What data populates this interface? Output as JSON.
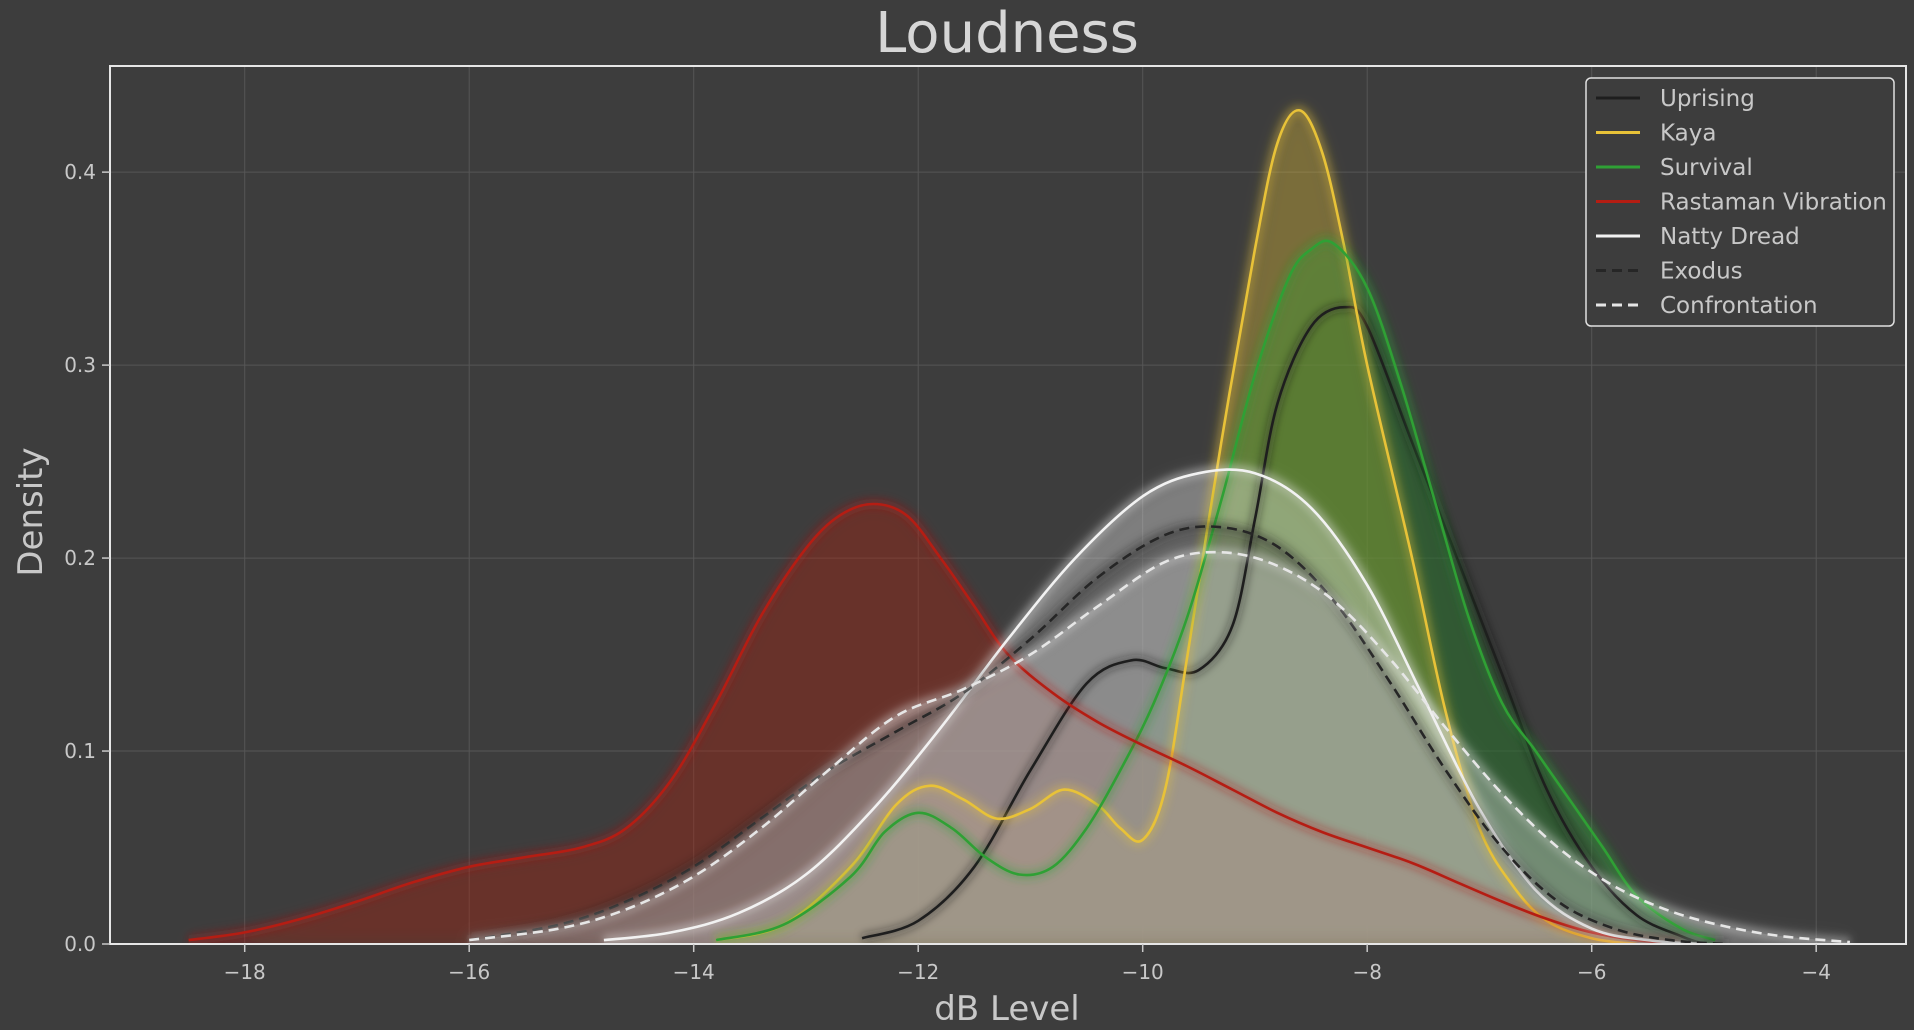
{
  "chart_data": {
    "type": "area",
    "title": "Loudness",
    "xlabel": "dB Level",
    "ylabel": "Density",
    "xlim": [
      -19.2,
      -3.2
    ],
    "ylim": [
      0,
      0.455
    ],
    "xticks": [
      -18,
      -16,
      -14,
      -12,
      -10,
      -8,
      -6,
      -4
    ],
    "xtick_labels": [
      "−18",
      "−16",
      "−14",
      "−12",
      "−10",
      "−8",
      "−6",
      "−4"
    ],
    "yticks": [
      0.0,
      0.1,
      0.2,
      0.3,
      0.4
    ],
    "ytick_labels": [
      "0.0",
      "0.1",
      "0.2",
      "0.3",
      "0.4"
    ],
    "grid": true,
    "legend_position": "top-right",
    "background": "#3d3d3d",
    "series": [
      {
        "name": "Uprising",
        "color": "#1e1e1e",
        "dash": "solid",
        "fill": true,
        "x": [
          -12.5,
          -12,
          -11.5,
          -11,
          -10.5,
          -10.1,
          -9.8,
          -9.5,
          -9.2,
          -9.0,
          -8.8,
          -8.5,
          -8.2,
          -8.0,
          -7.6,
          -7.2,
          -6.8,
          -6.4,
          -6.0,
          -5.6,
          -5.2,
          -5.0
        ],
        "y": [
          0.003,
          0.012,
          0.04,
          0.09,
          0.135,
          0.147,
          0.143,
          0.142,
          0.165,
          0.22,
          0.28,
          0.32,
          0.33,
          0.32,
          0.26,
          0.2,
          0.14,
          0.08,
          0.04,
          0.015,
          0.004,
          0.0
        ]
      },
      {
        "name": "Kaya",
        "color": "#e8c238",
        "dash": "solid",
        "fill": true,
        "x": [
          -13.8,
          -13.2,
          -12.6,
          -12.2,
          -11.9,
          -11.6,
          -11.3,
          -11.0,
          -10.7,
          -10.4,
          -10.2,
          -10.0,
          -9.8,
          -9.6,
          -9.3,
          -9.0,
          -8.8,
          -8.6,
          -8.4,
          -8.2,
          -8.0,
          -7.6,
          -7.3,
          -7.0,
          -6.7,
          -6.4,
          -6.0,
          -5.6
        ],
        "y": [
          0.002,
          0.01,
          0.04,
          0.072,
          0.082,
          0.075,
          0.065,
          0.07,
          0.08,
          0.072,
          0.06,
          0.054,
          0.08,
          0.15,
          0.26,
          0.36,
          0.415,
          0.432,
          0.41,
          0.36,
          0.3,
          0.2,
          0.12,
          0.06,
          0.03,
          0.012,
          0.003,
          0.0
        ]
      },
      {
        "name": "Survival",
        "color": "#2fa035",
        "dash": "solid",
        "fill": true,
        "x": [
          -13.8,
          -13.2,
          -12.6,
          -12.3,
          -12.0,
          -11.7,
          -11.4,
          -11.1,
          -10.8,
          -10.5,
          -10.2,
          -9.9,
          -9.6,
          -9.3,
          -9.0,
          -8.7,
          -8.5,
          -8.3,
          -8.0,
          -7.7,
          -7.4,
          -7.1,
          -6.8,
          -6.5,
          -6.2,
          -5.9,
          -5.6,
          -5.2,
          -4.9
        ],
        "y": [
          0.002,
          0.01,
          0.035,
          0.058,
          0.068,
          0.06,
          0.045,
          0.036,
          0.04,
          0.06,
          0.09,
          0.125,
          0.17,
          0.23,
          0.295,
          0.345,
          0.36,
          0.363,
          0.34,
          0.29,
          0.23,
          0.17,
          0.125,
          0.1,
          0.075,
          0.05,
          0.025,
          0.008,
          0.002
        ]
      },
      {
        "name": "Rastaman Vibration",
        "color": "#b51d13",
        "dash": "solid",
        "fill": true,
        "x": [
          -18.5,
          -18.0,
          -17.5,
          -17.0,
          -16.5,
          -16.0,
          -15.5,
          -15.0,
          -14.6,
          -14.2,
          -13.8,
          -13.4,
          -13.0,
          -12.7,
          -12.4,
          -12.1,
          -11.8,
          -11.5,
          -11.2,
          -10.8,
          -10.4,
          -10.0,
          -9.6,
          -9.2,
          -8.8,
          -8.4,
          -8.0,
          -7.6,
          -7.2,
          -6.8,
          -6.4,
          -6.0,
          -5.6,
          -5.2
        ],
        "y": [
          0.002,
          0.006,
          0.013,
          0.022,
          0.032,
          0.04,
          0.045,
          0.05,
          0.06,
          0.085,
          0.125,
          0.17,
          0.205,
          0.222,
          0.228,
          0.222,
          0.2,
          0.175,
          0.15,
          0.13,
          0.115,
          0.103,
          0.092,
          0.08,
          0.068,
          0.058,
          0.05,
          0.042,
          0.032,
          0.022,
          0.013,
          0.006,
          0.002,
          0.0
        ]
      },
      {
        "name": "Natty Dread",
        "color": "#f2f2f2",
        "dash": "solid",
        "fill": true,
        "x": [
          -14.8,
          -14.2,
          -13.6,
          -13.0,
          -12.4,
          -11.8,
          -11.2,
          -10.6,
          -10.0,
          -9.5,
          -9.0,
          -8.5,
          -8.0,
          -7.5,
          -7.0,
          -6.5,
          -6.0,
          -5.5,
          -5.0
        ],
        "y": [
          0.002,
          0.006,
          0.016,
          0.036,
          0.07,
          0.112,
          0.158,
          0.2,
          0.232,
          0.244,
          0.244,
          0.226,
          0.186,
          0.128,
          0.07,
          0.028,
          0.008,
          0.002,
          0.0
        ]
      },
      {
        "name": "Exodus",
        "color": "#262626",
        "dash": "dashed",
        "fill": true,
        "x": [
          -16.0,
          -15.2,
          -14.6,
          -14.0,
          -13.4,
          -12.8,
          -12.2,
          -11.6,
          -11.0,
          -10.4,
          -9.8,
          -9.3,
          -8.8,
          -8.3,
          -7.8,
          -7.3,
          -6.8,
          -6.3,
          -5.8,
          -5.3,
          -4.8
        ],
        "y": [
          0.002,
          0.01,
          0.022,
          0.04,
          0.065,
          0.09,
          0.11,
          0.13,
          0.158,
          0.19,
          0.212,
          0.216,
          0.206,
          0.178,
          0.136,
          0.09,
          0.05,
          0.022,
          0.008,
          0.002,
          0.0
        ]
      },
      {
        "name": "Confrontation",
        "color": "#e6e6e6",
        "dash": "dashed",
        "fill": true,
        "x": [
          -16.0,
          -15.2,
          -14.6,
          -14.0,
          -13.4,
          -12.8,
          -12.2,
          -11.6,
          -11.0,
          -10.4,
          -9.8,
          -9.3,
          -8.8,
          -8.3,
          -7.8,
          -7.3,
          -6.8,
          -6.3,
          -5.8,
          -5.3,
          -4.8,
          -4.3,
          -3.7
        ],
        "y": [
          0.002,
          0.008,
          0.018,
          0.035,
          0.06,
          0.09,
          0.118,
          0.132,
          0.15,
          0.175,
          0.198,
          0.203,
          0.196,
          0.178,
          0.148,
          0.112,
          0.078,
          0.05,
          0.03,
          0.017,
          0.009,
          0.004,
          0.001
        ]
      }
    ]
  }
}
